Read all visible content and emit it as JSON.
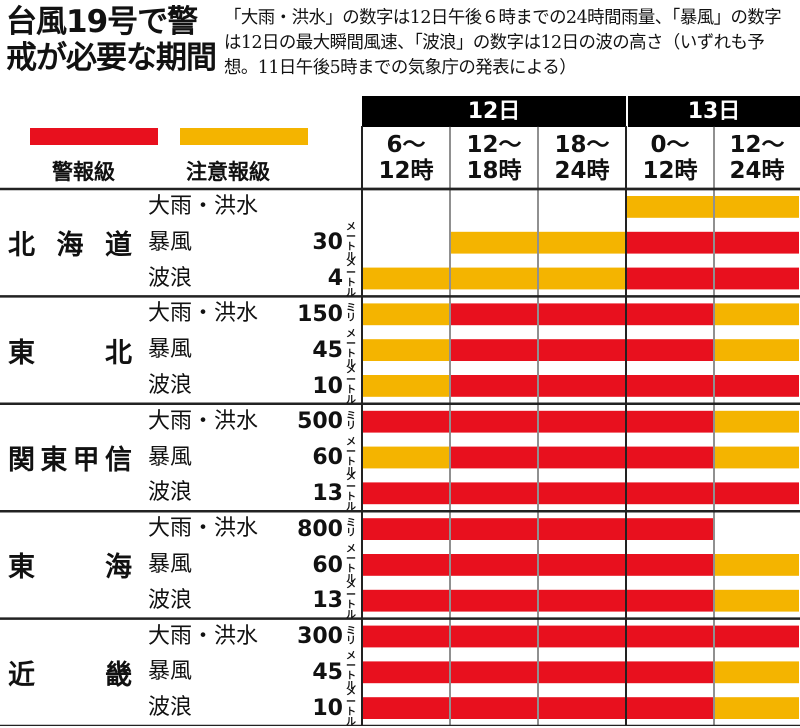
{
  "title": "台風19号で警戒が必要な期間",
  "note": "「大雨・洪水」の数字は12日午後６時までの24時間雨量、「暴風」の数字は12日の最大瞬間風速、「波浪」の数字は12日の波の高さ（いずれも予想。11日午後5時までの気象庁の発表による）",
  "legend": [
    {
      "label": "警報級",
      "color": "#e8101e"
    },
    {
      "label": "注意報級",
      "color": "#f4b400"
    }
  ],
  "colors": {
    "warning": "#e8101e",
    "advisory": "#f4b400",
    "none": "#ffffff",
    "day_bg": "#000000"
  },
  "days": [
    {
      "label": "12日",
      "span": 3
    },
    {
      "label": "13日",
      "span": 2
    }
  ],
  "periods": [
    {
      "line1": "6～",
      "line2": "12時"
    },
    {
      "line1": "12～",
      "line2": "18時"
    },
    {
      "line1": "18～",
      "line2": "24時"
    },
    {
      "line1": "0～",
      "line2": "12時"
    },
    {
      "line1": "12～",
      "line2": "24時"
    }
  ],
  "chart_data": {
    "type": "table",
    "level_codes": {
      "W": "警報級",
      "A": "注意報級",
      "-": "none"
    },
    "regions": [
      {
        "name": "北海道",
        "items": [
          {
            "label": "大雨・洪水",
            "value": "",
            "unit": "",
            "levels": [
              "-",
              "-",
              "-",
              "A",
              "A"
            ]
          },
          {
            "label": "暴風",
            "value": "30",
            "unit": "メートル",
            "levels": [
              "-",
              "A",
              "A",
              "W",
              "W"
            ]
          },
          {
            "label": "波浪",
            "value": "4",
            "unit": "メートル",
            "levels": [
              "A",
              "A",
              "A",
              "W",
              "W"
            ]
          }
        ]
      },
      {
        "name": "東北",
        "items": [
          {
            "label": "大雨・洪水",
            "value": "150",
            "unit": "ミリ",
            "levels": [
              "A",
              "W",
              "W",
              "W",
              "A"
            ]
          },
          {
            "label": "暴風",
            "value": "45",
            "unit": "メートル",
            "levels": [
              "A",
              "W",
              "W",
              "W",
              "A"
            ]
          },
          {
            "label": "波浪",
            "value": "10",
            "unit": "メートル",
            "levels": [
              "A",
              "W",
              "W",
              "W",
              "W"
            ]
          }
        ]
      },
      {
        "name": "関東甲信",
        "items": [
          {
            "label": "大雨・洪水",
            "value": "500",
            "unit": "ミリ",
            "levels": [
              "W",
              "W",
              "W",
              "W",
              "A"
            ]
          },
          {
            "label": "暴風",
            "value": "60",
            "unit": "メートル",
            "levels": [
              "A",
              "W",
              "W",
              "W",
              "A"
            ]
          },
          {
            "label": "波浪",
            "value": "13",
            "unit": "メートル",
            "levels": [
              "W",
              "W",
              "W",
              "W",
              "W"
            ]
          }
        ]
      },
      {
        "name": "東海",
        "items": [
          {
            "label": "大雨・洪水",
            "value": "800",
            "unit": "ミリ",
            "levels": [
              "W",
              "W",
              "W",
              "W",
              "-"
            ]
          },
          {
            "label": "暴風",
            "value": "60",
            "unit": "メートル",
            "levels": [
              "W",
              "W",
              "W",
              "W",
              "A"
            ]
          },
          {
            "label": "波浪",
            "value": "13",
            "unit": "メートル",
            "levels": [
              "W",
              "W",
              "W",
              "W",
              "A"
            ]
          }
        ]
      },
      {
        "name": "近畿",
        "items": [
          {
            "label": "大雨・洪水",
            "value": "300",
            "unit": "ミリ",
            "levels": [
              "W",
              "W",
              "W",
              "W",
              "W"
            ]
          },
          {
            "label": "暴風",
            "value": "45",
            "unit": "メートル",
            "levels": [
              "W",
              "W",
              "W",
              "W",
              "A"
            ]
          },
          {
            "label": "波浪",
            "value": "10",
            "unit": "メートル",
            "levels": [
              "W",
              "W",
              "W",
              "W",
              "A"
            ]
          }
        ]
      }
    ]
  }
}
